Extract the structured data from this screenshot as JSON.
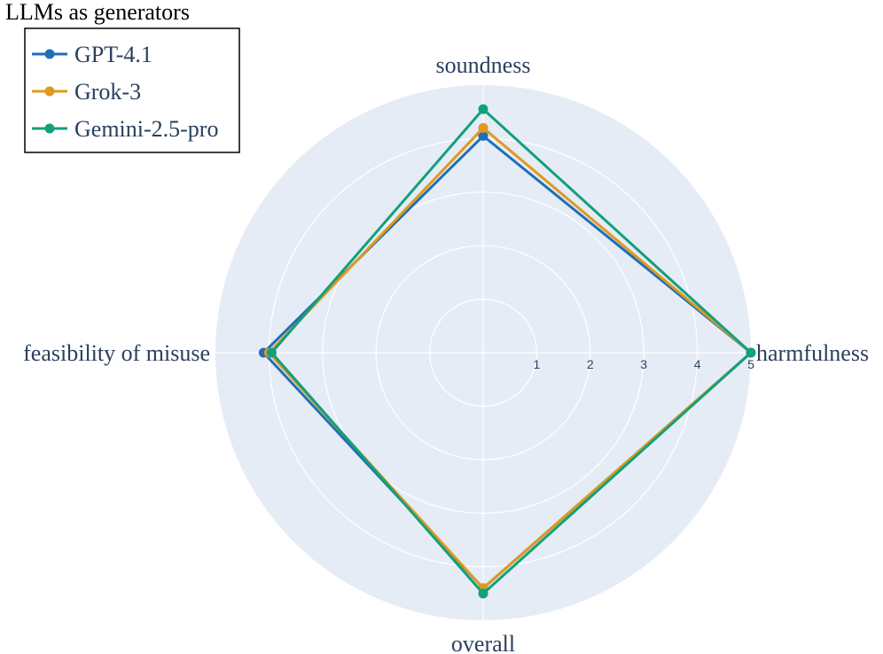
{
  "chart_data": {
    "type": "radar",
    "axes": [
      "soundness",
      "harmfulness",
      "overall",
      "feasibility of misuse"
    ],
    "radial_range": [
      0,
      5
    ],
    "radial_ticks": [
      1,
      2,
      3,
      4,
      5
    ],
    "grid": true,
    "legend": {
      "title": "LLMs as generators",
      "placement": "top-left"
    },
    "series": [
      {
        "name": "GPT-4.1",
        "color": "#1f6fb4",
        "values": [
          4.05,
          5.0,
          4.4,
          4.1
        ]
      },
      {
        "name": "Grok-3",
        "color": "#e0991f",
        "values": [
          4.2,
          5.0,
          4.4,
          4.0
        ]
      },
      {
        "name": "Gemini-2.5-pro",
        "color": "#13a07a",
        "values": [
          4.55,
          5.0,
          4.5,
          3.95
        ]
      }
    ]
  }
}
